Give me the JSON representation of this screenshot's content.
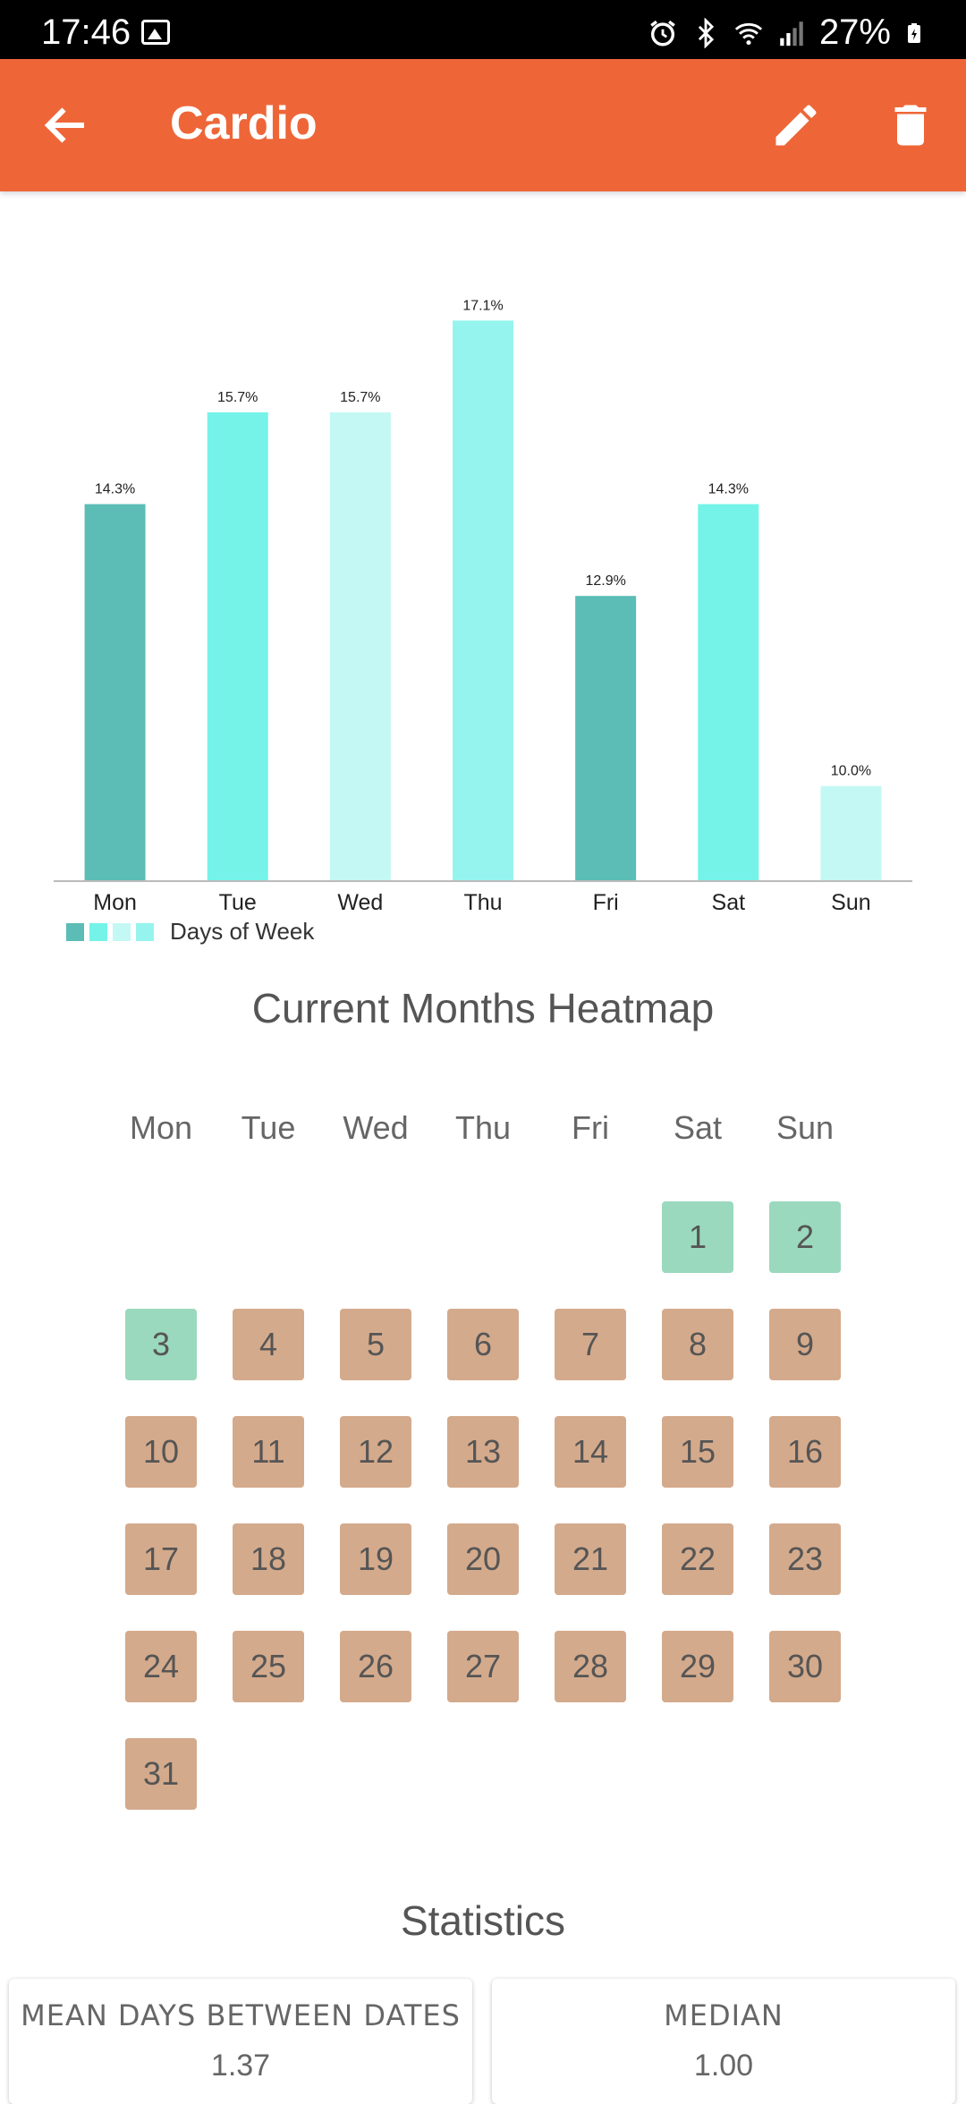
{
  "status_bar": {
    "time": "17:46",
    "battery": "27%"
  },
  "app_bar": {
    "title": "Cardio"
  },
  "chart_data": {
    "type": "bar",
    "categories": [
      "Mon",
      "Tue",
      "Wed",
      "Thu",
      "Fri",
      "Sat",
      "Sun"
    ],
    "values": [
      14.3,
      15.7,
      15.7,
      17.1,
      12.9,
      14.3,
      10.0
    ],
    "labels": [
      "14.3%",
      "15.7%",
      "15.7%",
      "17.1%",
      "12.9%",
      "14.3%",
      "10.0%"
    ],
    "colors": [
      "#5bbdb5",
      "#75f3e8",
      "#c4f8f4",
      "#95f5ee",
      "#5bbdb5",
      "#75f3e8",
      "#c4f8f4"
    ],
    "ylim": [
      8.55,
      17.35
    ],
    "legend": {
      "label": "Days of Week",
      "position": "bottom-left",
      "swatches": [
        "#5bbdb5",
        "#75f3e8",
        "#c4f8f4",
        "#95f5ee"
      ]
    }
  },
  "heatmap": {
    "title": "Current Months Heatmap",
    "weekdays": [
      "Mon",
      "Tue",
      "Wed",
      "Thu",
      "Fri",
      "Sat",
      "Sun"
    ],
    "start_weekday": 5,
    "days": 31,
    "done_days": [
      1,
      2,
      3
    ],
    "colors": {
      "done": "#9ad9bd",
      "miss": "#d4aa8c"
    }
  },
  "statistics": {
    "title": "Statistics",
    "cards": [
      {
        "title": "MEAN DAYS BETWEEN DATES",
        "value": "1.37"
      },
      {
        "title": "MEDIAN",
        "value": "1.00"
      }
    ]
  }
}
